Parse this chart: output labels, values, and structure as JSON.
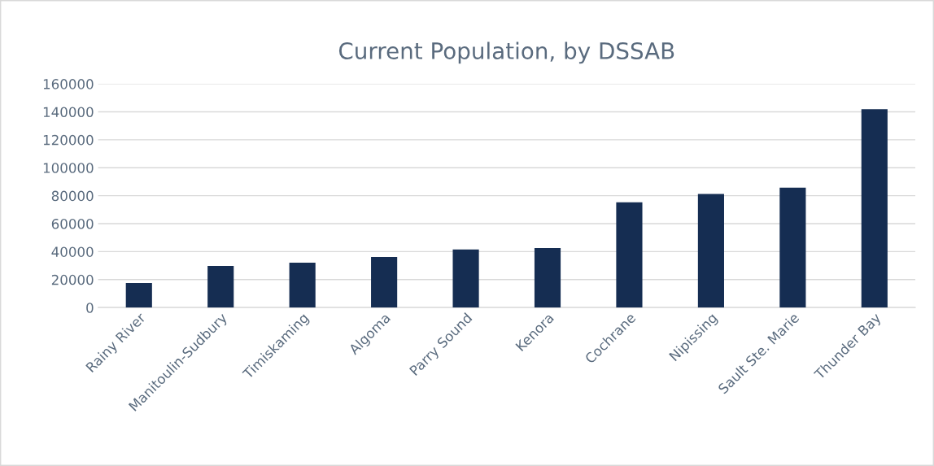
{
  "chart_data": {
    "type": "bar",
    "title": "Current Population, by DSSAB",
    "categories": [
      "Rainy River",
      "Manitoulin-Sudbury",
      "Timiskaming",
      "Algoma",
      "Parry Sound",
      "Kenora",
      "Cochrane",
      "Nipissing",
      "Sault Ste. Marie",
      "Thunder Bay"
    ],
    "values": [
      17500,
      29800,
      32100,
      36200,
      41500,
      42600,
      75300,
      81200,
      85800,
      141900
    ],
    "color": "#152d52",
    "ylim": [
      0,
      160000
    ],
    "yticks": [
      0,
      20000,
      40000,
      60000,
      80000,
      100000,
      120000,
      140000,
      160000
    ],
    "grid": "y"
  }
}
